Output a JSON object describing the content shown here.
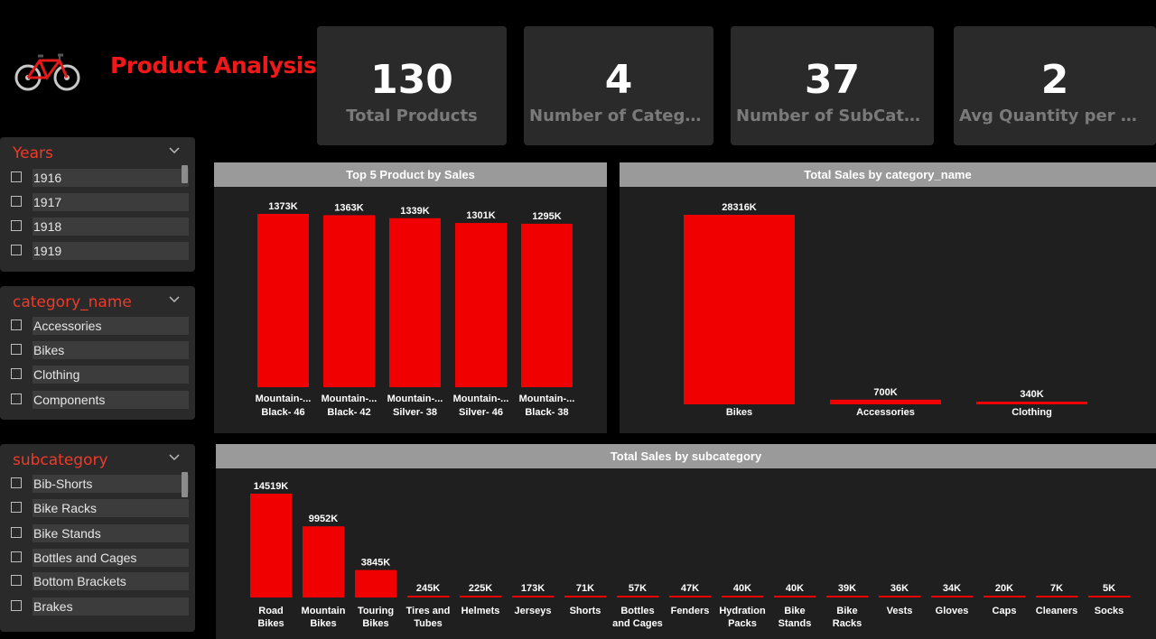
{
  "header": {
    "title": "Product Analysis",
    "logo_icon": "bicycle-icon"
  },
  "kpis": [
    {
      "value": "130",
      "label": "Total Products"
    },
    {
      "value": "4",
      "label": "Number of Categories"
    },
    {
      "value": "37",
      "label": "Number of SubCateg..."
    },
    {
      "value": "2",
      "label": "Avg Quantity per Order"
    }
  ],
  "slicers": {
    "years": {
      "title": "Years",
      "items": [
        "1916",
        "1917",
        "1918",
        "1919"
      ]
    },
    "category": {
      "title": "category_name",
      "items": [
        "Accessories",
        "Bikes",
        "Clothing",
        "Components"
      ]
    },
    "subcategory": {
      "title": "subcategory",
      "items": [
        "Bib-Shorts",
        "Bike Racks",
        "Bike Stands",
        "Bottles and Cages",
        "Bottom Brackets",
        "Brakes"
      ]
    }
  },
  "colors": {
    "bar": "#f00000",
    "panel": "#1f1f1f",
    "header": "#9a9a9a",
    "accent": "#ef3a2a"
  },
  "chart_data": [
    {
      "type": "bar",
      "title": "Top 5 Product by Sales",
      "categories": [
        [
          "Mountain-...",
          "Black- 46"
        ],
        [
          "Mountain-...",
          "Black- 42"
        ],
        [
          "Mountain-...",
          "Silver- 38"
        ],
        [
          "Mountain-...",
          "Silver- 46"
        ],
        [
          "Mountain-...",
          "Black- 38"
        ]
      ],
      "values": [
        1373,
        1363,
        1339,
        1301,
        1295
      ],
      "labels": [
        "1373K",
        "1363K",
        "1339K",
        "1301K",
        "1295K"
      ],
      "ylim": [
        0,
        1373
      ]
    },
    {
      "type": "bar",
      "title": "Total Sales by category_name",
      "categories": [
        [
          "Bikes"
        ],
        [
          "Accessories"
        ],
        [
          "Clothing"
        ]
      ],
      "values": [
        28316,
        700,
        340
      ],
      "labels": [
        "28316K",
        "700K",
        "340K"
      ],
      "ylim": [
        0,
        28316
      ]
    },
    {
      "type": "bar",
      "title": "Total Sales by subcategory",
      "categories": [
        [
          "Road",
          "Bikes"
        ],
        [
          "Mountain",
          "Bikes"
        ],
        [
          "Touring",
          "Bikes"
        ],
        [
          "Tires and",
          "Tubes"
        ],
        [
          "Helmets"
        ],
        [
          "Jerseys"
        ],
        [
          "Shorts"
        ],
        [
          "Bottles",
          "and Cages"
        ],
        [
          "Fenders"
        ],
        [
          "Hydration",
          "Packs"
        ],
        [
          "Bike",
          "Stands"
        ],
        [
          "Bike",
          "Racks"
        ],
        [
          "Vests"
        ],
        [
          "Gloves"
        ],
        [
          "Caps"
        ],
        [
          "Cleaners"
        ],
        [
          "Socks"
        ]
      ],
      "values": [
        14519,
        9952,
        3845,
        245,
        225,
        173,
        71,
        57,
        47,
        40,
        40,
        39,
        36,
        34,
        20,
        7,
        5
      ],
      "labels": [
        "14519K",
        "9952K",
        "3845K",
        "245K",
        "225K",
        "173K",
        "71K",
        "57K",
        "47K",
        "40K",
        "40K",
        "39K",
        "36K",
        "34K",
        "20K",
        "7K",
        "5K"
      ],
      "ylim": [
        0,
        14519
      ]
    }
  ]
}
